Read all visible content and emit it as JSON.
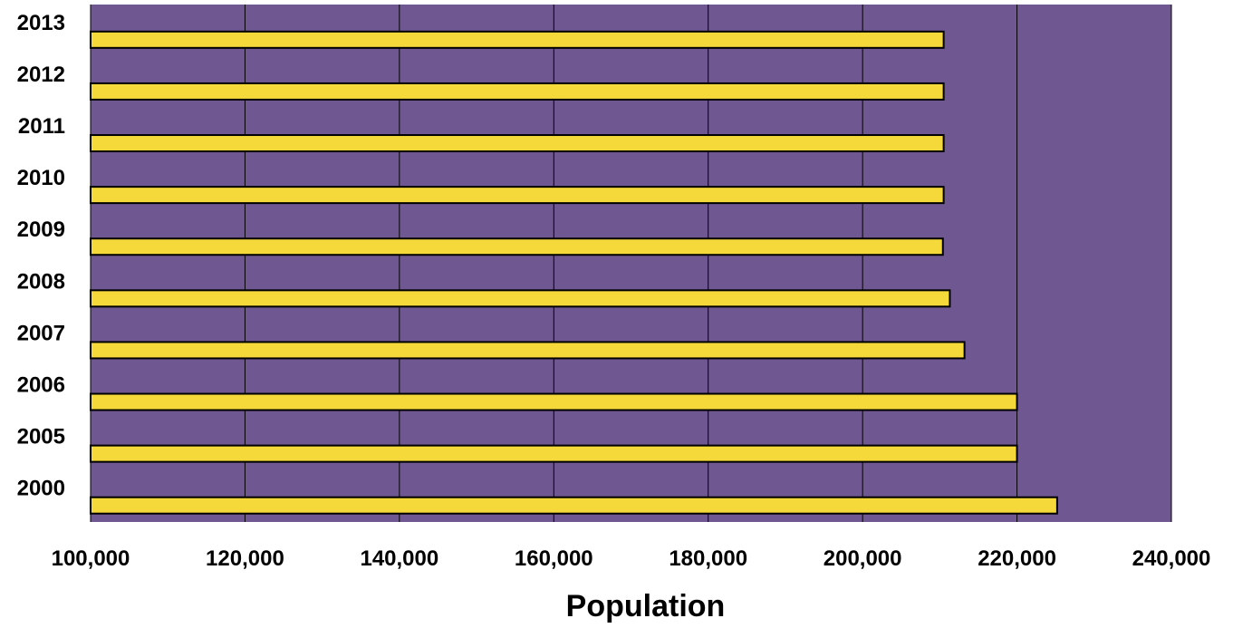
{
  "chart_data": {
    "type": "bar",
    "orientation": "horizontal",
    "xlabel": "Population",
    "ylabel": "",
    "xlim": [
      100000,
      240000
    ],
    "x_ticks": [
      "100,000",
      "120,000",
      "140,000",
      "160,000",
      "180,000",
      "200,000",
      "220,000",
      "240,000"
    ],
    "x_tick_values": [
      100000,
      120000,
      140000,
      160000,
      180000,
      200000,
      220000,
      240000
    ],
    "categories": [
      "2013",
      "2012",
      "2011",
      "2010",
      "2009",
      "2008",
      "2007",
      "2006",
      "2005",
      "2000"
    ],
    "values": [
      210500,
      210500,
      210500,
      210500,
      210400,
      211300,
      213200,
      220000,
      220000,
      225200
    ],
    "grid": "vertical",
    "legend": "none"
  },
  "colors": {
    "plot_background": "#6f5891",
    "bar_fill": "#f5d83a",
    "bar_stroke": "#000000",
    "grid": "#000000"
  }
}
